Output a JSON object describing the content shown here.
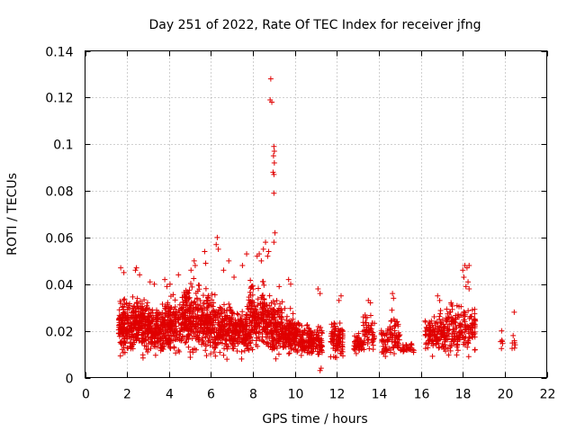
{
  "chart_data": {
    "type": "scatter",
    "title": "Day 251 of 2022, Rate Of TEC Index for receiver jfng",
    "xlabel": "GPS time / hours",
    "ylabel": "ROTI / TECUs",
    "xlim": [
      0,
      22
    ],
    "ylim": [
      0,
      0.14
    ],
    "x_ticks": [
      0,
      2,
      4,
      6,
      8,
      10,
      12,
      14,
      16,
      18,
      20,
      22
    ],
    "y_ticks": [
      0,
      0.02,
      0.04,
      0.06,
      0.08,
      0.1,
      0.12,
      0.14
    ],
    "x_tick_labels": [
      "0",
      "2",
      "4",
      "6",
      "8",
      "10",
      "12",
      "14",
      "16",
      "18",
      "20",
      "22"
    ],
    "y_tick_labels": [
      "0",
      "0.02",
      "0.04",
      "0.06",
      "0.08",
      "0.1",
      "0.12",
      "0.14"
    ],
    "grid": true,
    "marker": "+",
    "color": "#e00000",
    "series": [
      {
        "name": "ROTI",
        "clusters": [
          {
            "x": [
              1.6,
              2.3
            ],
            "y": [
              0.006,
              0.038
            ],
            "n": 170
          },
          {
            "x": [
              2.3,
              3.0
            ],
            "y": [
              0.006,
              0.04
            ],
            "n": 170
          },
          {
            "x": [
              3.0,
              3.8
            ],
            "y": [
              0.007,
              0.034
            ],
            "n": 170
          },
          {
            "x": [
              3.8,
              4.6
            ],
            "y": [
              0.006,
              0.038
            ],
            "n": 170
          },
          {
            "x": [
              4.6,
              5.4
            ],
            "y": [
              0.006,
              0.045
            ],
            "n": 190
          },
          {
            "x": [
              5.4,
              6.2
            ],
            "y": [
              0.006,
              0.042
            ],
            "n": 180
          },
          {
            "x": [
              6.2,
              7.0
            ],
            "y": [
              0.007,
              0.035
            ],
            "n": 160
          },
          {
            "x": [
              7.0,
              7.8
            ],
            "y": [
              0.007,
              0.032
            ],
            "n": 160
          },
          {
            "x": [
              7.8,
              8.6
            ],
            "y": [
              0.006,
              0.045
            ],
            "n": 170
          },
          {
            "x": [
              8.6,
              9.4
            ],
            "y": [
              0.005,
              0.04
            ],
            "n": 180
          },
          {
            "x": [
              9.4,
              10.2
            ],
            "y": [
              0.007,
              0.03
            ],
            "n": 160
          },
          {
            "x": [
              10.2,
              11.3
            ],
            "y": [
              0.007,
              0.025
            ],
            "n": 160
          },
          {
            "x": [
              11.7,
              12.3
            ],
            "y": [
              0.006,
              0.028
            ],
            "n": 90
          },
          {
            "x": [
              12.8,
              13.2
            ],
            "y": [
              0.008,
              0.02
            ],
            "n": 40
          },
          {
            "x": [
              13.2,
              13.8
            ],
            "y": [
              0.008,
              0.03
            ],
            "n": 60
          },
          {
            "x": [
              14.1,
              14.6
            ],
            "y": [
              0.007,
              0.028
            ],
            "n": 50
          },
          {
            "x": [
              14.6,
              15.0
            ],
            "y": [
              0.008,
              0.03
            ],
            "n": 45
          },
          {
            "x": [
              15.0,
              15.7
            ],
            "y": [
              0.009,
              0.016
            ],
            "n": 30
          },
          {
            "x": [
              16.2,
              17.2
            ],
            "y": [
              0.007,
              0.03
            ],
            "n": 140
          },
          {
            "x": [
              17.2,
              18.6
            ],
            "y": [
              0.006,
              0.034
            ],
            "n": 180
          },
          {
            "x": [
              19.8,
              19.9
            ],
            "y": [
              0.012,
              0.02
            ],
            "n": 5
          },
          {
            "x": [
              20.3,
              20.5
            ],
            "y": [
              0.01,
              0.02
            ],
            "n": 6
          }
        ],
        "points": [
          {
            "x": 8.85,
            "y": 0.128
          },
          {
            "x": 8.82,
            "y": 0.119
          },
          {
            "x": 8.9,
            "y": 0.118
          },
          {
            "x": 9.0,
            "y": 0.099
          },
          {
            "x": 9.02,
            "y": 0.097
          },
          {
            "x": 8.98,
            "y": 0.095
          },
          {
            "x": 9.02,
            "y": 0.092
          },
          {
            "x": 8.96,
            "y": 0.088
          },
          {
            "x": 9.0,
            "y": 0.087
          },
          {
            "x": 9.0,
            "y": 0.079
          },
          {
            "x": 9.05,
            "y": 0.062
          },
          {
            "x": 9.0,
            "y": 0.058
          },
          {
            "x": 8.6,
            "y": 0.058
          },
          {
            "x": 8.5,
            "y": 0.055
          },
          {
            "x": 6.3,
            "y": 0.06
          },
          {
            "x": 6.25,
            "y": 0.057
          },
          {
            "x": 6.35,
            "y": 0.055
          },
          {
            "x": 5.2,
            "y": 0.05
          },
          {
            "x": 5.25,
            "y": 0.048
          },
          {
            "x": 5.05,
            "y": 0.046
          },
          {
            "x": 5.7,
            "y": 0.054
          },
          {
            "x": 5.75,
            "y": 0.049
          },
          {
            "x": 7.7,
            "y": 0.053
          },
          {
            "x": 6.85,
            "y": 0.05
          },
          {
            "x": 7.5,
            "y": 0.048
          },
          {
            "x": 8.2,
            "y": 0.052
          },
          {
            "x": 8.4,
            "y": 0.05
          },
          {
            "x": 8.3,
            "y": 0.053
          },
          {
            "x": 8.7,
            "y": 0.052
          },
          {
            "x": 8.75,
            "y": 0.054
          },
          {
            "x": 1.7,
            "y": 0.047
          },
          {
            "x": 1.85,
            "y": 0.045
          },
          {
            "x": 2.4,
            "y": 0.046
          },
          {
            "x": 2.45,
            "y": 0.047
          },
          {
            "x": 2.6,
            "y": 0.044
          },
          {
            "x": 3.1,
            "y": 0.041
          },
          {
            "x": 3.3,
            "y": 0.04
          },
          {
            "x": 3.9,
            "y": 0.039
          },
          {
            "x": 4.05,
            "y": 0.04
          },
          {
            "x": 4.45,
            "y": 0.044
          },
          {
            "x": 3.8,
            "y": 0.042
          },
          {
            "x": 6.6,
            "y": 0.046
          },
          {
            "x": 7.1,
            "y": 0.043
          },
          {
            "x": 9.7,
            "y": 0.042
          },
          {
            "x": 9.8,
            "y": 0.04
          },
          {
            "x": 9.25,
            "y": 0.039
          },
          {
            "x": 11.1,
            "y": 0.038
          },
          {
            "x": 11.2,
            "y": 0.036
          },
          {
            "x": 11.2,
            "y": 0.003
          },
          {
            "x": 11.25,
            "y": 0.004
          },
          {
            "x": 12.2,
            "y": 0.035
          },
          {
            "x": 12.1,
            "y": 0.033
          },
          {
            "x": 13.5,
            "y": 0.033
          },
          {
            "x": 13.6,
            "y": 0.032
          },
          {
            "x": 14.65,
            "y": 0.036
          },
          {
            "x": 14.7,
            "y": 0.034
          },
          {
            "x": 16.8,
            "y": 0.035
          },
          {
            "x": 16.9,
            "y": 0.033
          },
          {
            "x": 18.1,
            "y": 0.048
          },
          {
            "x": 18.2,
            "y": 0.047
          },
          {
            "x": 18.0,
            "y": 0.046
          },
          {
            "x": 18.3,
            "y": 0.048
          },
          {
            "x": 18.05,
            "y": 0.043
          },
          {
            "x": 18.25,
            "y": 0.041
          },
          {
            "x": 18.15,
            "y": 0.039
          },
          {
            "x": 18.3,
            "y": 0.038
          },
          {
            "x": 20.45,
            "y": 0.028
          },
          {
            "x": 19.85,
            "y": 0.02
          },
          {
            "x": 20.4,
            "y": 0.018
          }
        ]
      }
    ]
  }
}
